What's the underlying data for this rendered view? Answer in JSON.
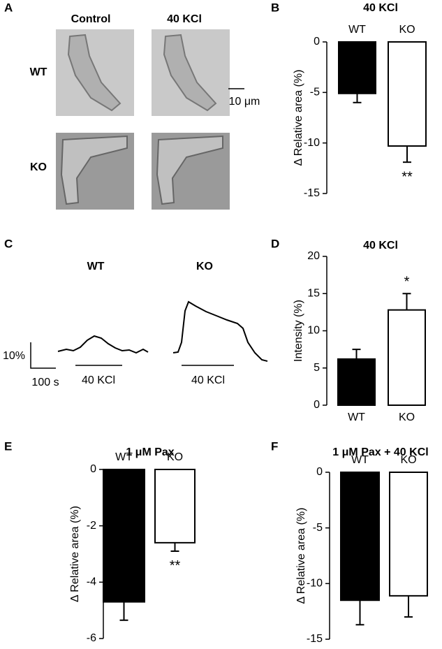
{
  "panels": {
    "a": "A",
    "b": "B",
    "c": "C",
    "d": "D",
    "e": "E",
    "f": "F"
  },
  "micrographs": {
    "col_labels": [
      "Control",
      "40 KCl"
    ],
    "row_labels": [
      "WT",
      "KO"
    ],
    "scale_bar": "10 μm"
  },
  "traces": {
    "labels": [
      "WT",
      "KO"
    ],
    "y_scale": "10%",
    "x_scale": "100 s",
    "stimulus": [
      "40 KCl",
      "40 KCl"
    ]
  },
  "chart_data": [
    {
      "type": "bar",
      "title": "40 KCl",
      "ylabel": "Δ Relative area (%)",
      "categories": [
        "WT",
        "KO"
      ],
      "values": [
        -5.1,
        -10.3
      ],
      "errors": [
        0.9,
        1.6
      ],
      "colors": [
        "#000000",
        "#ffffff"
      ],
      "annotations": [
        {
          "category": "KO",
          "text": "**"
        }
      ],
      "ylim": [
        -15,
        0
      ],
      "yticks": [
        -15,
        -10,
        -5,
        0
      ]
    },
    {
      "type": "bar",
      "title": "40 KCl",
      "ylabel": "Intensity (%)",
      "categories": [
        "WT",
        "KO"
      ],
      "values": [
        6.2,
        12.8
      ],
      "errors": [
        1.3,
        2.2
      ],
      "colors": [
        "#000000",
        "#ffffff"
      ],
      "annotations": [
        {
          "category": "KO",
          "text": "*"
        }
      ],
      "ylim": [
        0,
        20
      ],
      "yticks": [
        0,
        5,
        10,
        15,
        20
      ]
    },
    {
      "type": "bar",
      "title": "1 μM Pax",
      "ylabel": "Δ Relative area (%)",
      "categories": [
        "WT",
        "KO"
      ],
      "values": [
        -4.7,
        -2.6
      ],
      "errors": [
        0.65,
        0.3
      ],
      "colors": [
        "#000000",
        "#ffffff"
      ],
      "annotations": [
        {
          "category": "KO",
          "text": "**"
        }
      ],
      "ylim": [
        -6,
        0
      ],
      "yticks": [
        -6,
        -4,
        -2,
        0
      ]
    },
    {
      "type": "bar",
      "title": "1 μM Pax + 40 KCl",
      "ylabel": "Δ Relative area (%)",
      "categories": [
        "WT",
        "KO"
      ],
      "values": [
        -11.5,
        -11.1
      ],
      "errors": [
        2.2,
        1.9
      ],
      "colors": [
        "#000000",
        "#ffffff"
      ],
      "ylim": [
        -15,
        0
      ],
      "yticks": [
        -15,
        -10,
        -5,
        0
      ]
    }
  ]
}
